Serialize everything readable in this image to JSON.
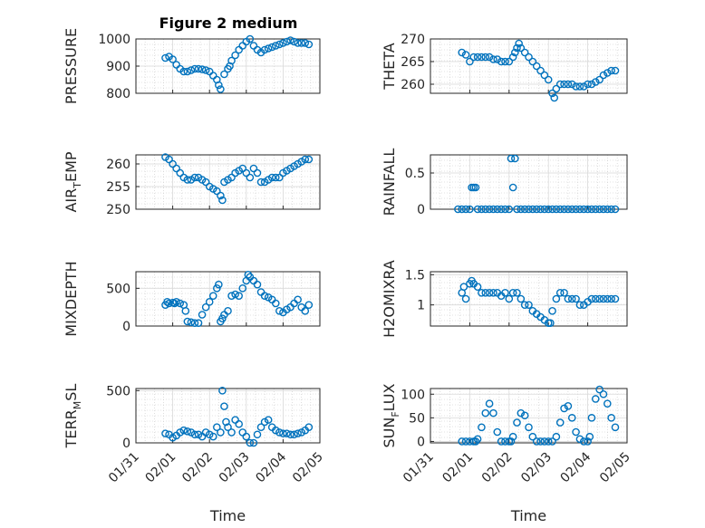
{
  "figure": {
    "title": "Figure 2 medium"
  },
  "colors": {
    "series": "#0072BD",
    "axis": "#262626"
  },
  "chart_data": [
    {
      "id": "pressure",
      "type": "scatter",
      "marker": "circle",
      "ylabel": "PRESSURE",
      "ylim": [
        800,
        1000
      ],
      "yticks": [
        800,
        900,
        1000
      ],
      "xlim": [
        0,
        5
      ],
      "grid": true,
      "series": [
        {
          "x": [
            0.8,
            0.9,
            1.0,
            1.1,
            1.2,
            1.3,
            1.4,
            1.5,
            1.6,
            1.7,
            1.8,
            1.9,
            2.0,
            2.1,
            2.2,
            2.25,
            2.3,
            2.4,
            2.5,
            2.55,
            2.6,
            2.7,
            2.8,
            2.9,
            3.0,
            3.1,
            3.2,
            3.3,
            3.4,
            3.5,
            3.6,
            3.7,
            3.8,
            3.9,
            4.0,
            4.1,
            4.2,
            4.3,
            4.4,
            4.5,
            4.6,
            4.7
          ],
          "y": [
            930,
            935,
            925,
            905,
            890,
            880,
            880,
            885,
            890,
            890,
            888,
            885,
            880,
            865,
            850,
            830,
            815,
            870,
            890,
            900,
            920,
            940,
            960,
            975,
            990,
            1000,
            975,
            960,
            950,
            960,
            965,
            970,
            975,
            980,
            985,
            990,
            995,
            990,
            985,
            985,
            985,
            980
          ]
        }
      ]
    },
    {
      "id": "theta",
      "type": "scatter",
      "marker": "circle",
      "ylabel": "THETA",
      "ylim": [
        258,
        270
      ],
      "yticks": [
        260,
        265,
        270
      ],
      "xlim": [
        0,
        5
      ],
      "grid": true,
      "series": [
        {
          "x": [
            0.8,
            0.9,
            1.0,
            1.1,
            1.2,
            1.3,
            1.4,
            1.5,
            1.6,
            1.7,
            1.8,
            1.9,
            2.0,
            2.1,
            2.15,
            2.2,
            2.25,
            2.3,
            2.4,
            2.5,
            2.6,
            2.7,
            2.8,
            2.9,
            3.0,
            3.1,
            3.15,
            3.2,
            3.3,
            3.4,
            3.5,
            3.6,
            3.7,
            3.8,
            3.9,
            4.0,
            4.1,
            4.2,
            4.3,
            4.4,
            4.5,
            4.6,
            4.7
          ],
          "y": [
            267,
            266.5,
            265,
            266,
            266,
            266,
            266,
            266,
            265.5,
            265.5,
            265,
            265,
            265,
            266,
            267,
            268,
            269,
            268,
            267,
            266,
            265,
            264,
            263,
            262,
            261,
            258,
            257,
            259,
            260,
            260,
            260,
            260,
            259.5,
            259.5,
            259.5,
            260,
            260,
            260.5,
            261,
            262,
            262.5,
            263,
            263
          ]
        }
      ]
    },
    {
      "id": "air_temp",
      "type": "scatter",
      "marker": "circle",
      "ylabel": "AIR",
      "ylabel_sub": "T",
      "ylabel_rest": "EMP",
      "ylim": [
        250,
        262
      ],
      "yticks": [
        250,
        255,
        260
      ],
      "xlim": [
        0,
        5
      ],
      "grid": true,
      "series": [
        {
          "x": [
            0.8,
            0.9,
            1.0,
            1.1,
            1.2,
            1.3,
            1.4,
            1.5,
            1.6,
            1.7,
            1.8,
            1.9,
            2.0,
            2.1,
            2.2,
            2.3,
            2.35,
            2.4,
            2.5,
            2.6,
            2.7,
            2.8,
            2.9,
            3.0,
            3.1,
            3.2,
            3.3,
            3.4,
            3.5,
            3.6,
            3.7,
            3.8,
            3.9,
            4.0,
            4.1,
            4.2,
            4.3,
            4.4,
            4.5,
            4.6,
            4.7
          ],
          "y": [
            261.5,
            261,
            260,
            259,
            258,
            257,
            256.5,
            256.5,
            257,
            257,
            256.5,
            256,
            255,
            254.5,
            254,
            253,
            252,
            256,
            256.5,
            257,
            258,
            258.5,
            259,
            258,
            257,
            259,
            258,
            256,
            256,
            256.5,
            257,
            257,
            257,
            258,
            258.5,
            259,
            259.5,
            260,
            260.5,
            261,
            261
          ]
        }
      ]
    },
    {
      "id": "rainfall",
      "type": "scatter",
      "marker": "circle",
      "ylabel": "RAINFALL",
      "ylim": [
        0,
        0.75
      ],
      "yticks": [
        0,
        0.5
      ],
      "xlim": [
        0,
        5
      ],
      "grid": true,
      "series": [
        {
          "x": [
            0.7,
            0.8,
            0.9,
            1.0,
            1.05,
            1.1,
            1.15,
            1.2,
            1.3,
            1.4,
            1.5,
            1.6,
            1.7,
            1.8,
            1.9,
            2.0,
            2.05,
            2.1,
            2.15,
            2.2,
            2.3,
            2.4,
            2.5,
            2.6,
            2.7,
            2.8,
            2.9,
            3.0,
            3.1,
            3.2,
            3.3,
            3.4,
            3.5,
            3.6,
            3.7,
            3.8,
            3.9,
            4.0,
            4.1,
            4.2,
            4.3,
            4.4,
            4.5,
            4.6,
            4.7
          ],
          "y": [
            0,
            0,
            0,
            0,
            0.3,
            0.3,
            0.3,
            0,
            0,
            0,
            0,
            0,
            0,
            0,
            0,
            0,
            0.7,
            0.3,
            0.7,
            0,
            0,
            0,
            0,
            0,
            0,
            0,
            0,
            0,
            0,
            0,
            0,
            0,
            0,
            0,
            0,
            0,
            0,
            0,
            0,
            0,
            0,
            0,
            0,
            0,
            0
          ]
        }
      ]
    },
    {
      "id": "mixdepth",
      "type": "scatter",
      "marker": "circle",
      "ylabel": "MIXDEPTH",
      "ylim": [
        0,
        720
      ],
      "yticks": [
        0,
        500
      ],
      "xlim": [
        0,
        5
      ],
      "grid": true,
      "series": [
        {
          "x": [
            0.8,
            0.85,
            0.9,
            1.0,
            1.05,
            1.1,
            1.2,
            1.3,
            1.35,
            1.4,
            1.5,
            1.6,
            1.7,
            1.8,
            1.9,
            2.0,
            2.1,
            2.2,
            2.25,
            2.3,
            2.35,
            2.4,
            2.5,
            2.6,
            2.7,
            2.8,
            2.9,
            3.0,
            3.05,
            3.1,
            3.2,
            3.3,
            3.4,
            3.5,
            3.6,
            3.7,
            3.8,
            3.9,
            4.0,
            4.1,
            4.2,
            4.3,
            4.4,
            4.5,
            4.6,
            4.7
          ],
          "y": [
            280,
            320,
            300,
            310,
            300,
            320,
            300,
            280,
            200,
            60,
            50,
            40,
            40,
            150,
            250,
            320,
            400,
            500,
            550,
            60,
            100,
            150,
            200,
            400,
            420,
            400,
            500,
            600,
            680,
            650,
            600,
            550,
            450,
            400,
            380,
            350,
            300,
            200,
            180,
            220,
            250,
            300,
            350,
            250,
            200,
            280
          ]
        }
      ]
    },
    {
      "id": "h2omixra",
      "type": "scatter",
      "marker": "circle",
      "ylabel": "H2OMIXRA",
      "ylim": [
        0.65,
        1.55
      ],
      "yticks": [
        1,
        1.5
      ],
      "xlim": [
        0,
        5
      ],
      "grid": true,
      "series": [
        {
          "x": [
            0.8,
            0.85,
            0.9,
            1.0,
            1.05,
            1.1,
            1.2,
            1.3,
            1.4,
            1.5,
            1.6,
            1.7,
            1.8,
            1.9,
            2.0,
            2.1,
            2.2,
            2.3,
            2.4,
            2.5,
            2.6,
            2.7,
            2.8,
            2.9,
            3.0,
            3.05,
            3.1,
            3.2,
            3.3,
            3.4,
            3.5,
            3.6,
            3.7,
            3.8,
            3.9,
            4.0,
            4.1,
            4.2,
            4.3,
            4.4,
            4.5,
            4.6,
            4.7
          ],
          "y": [
            1.2,
            1.3,
            1.1,
            1.35,
            1.4,
            1.35,
            1.3,
            1.2,
            1.2,
            1.2,
            1.2,
            1.2,
            1.15,
            1.2,
            1.1,
            1.2,
            1.2,
            1.1,
            1.0,
            1.0,
            0.9,
            0.85,
            0.8,
            0.75,
            0.7,
            0.7,
            0.9,
            1.1,
            1.2,
            1.2,
            1.1,
            1.1,
            1.1,
            1.0,
            1.0,
            1.05,
            1.1,
            1.1,
            1.1,
            1.1,
            1.1,
            1.1,
            1.1
          ]
        }
      ]
    },
    {
      "id": "terr_msl",
      "type": "scatter",
      "marker": "circle",
      "ylabel": "TERR",
      "ylabel_sub": "M",
      "ylabel_rest": "SL",
      "ylim": [
        0,
        520
      ],
      "yticks": [
        0,
        500
      ],
      "xlim": [
        0,
        5
      ],
      "grid": true,
      "series": [
        {
          "x": [
            0.8,
            0.9,
            1.0,
            1.1,
            1.2,
            1.3,
            1.4,
            1.5,
            1.6,
            1.7,
            1.8,
            1.9,
            2.0,
            2.1,
            2.2,
            2.3,
            2.35,
            2.4,
            2.45,
            2.5,
            2.6,
            2.7,
            2.8,
            2.9,
            3.0,
            3.1,
            3.2,
            3.3,
            3.4,
            3.5,
            3.6,
            3.7,
            3.8,
            3.9,
            4.0,
            4.1,
            4.2,
            4.3,
            4.4,
            4.5,
            4.6,
            4.7
          ],
          "y": [
            90,
            80,
            50,
            70,
            100,
            120,
            110,
            100,
            80,
            80,
            60,
            100,
            80,
            60,
            150,
            100,
            500,
            350,
            200,
            150,
            100,
            220,
            180,
            100,
            60,
            0,
            0,
            80,
            150,
            200,
            220,
            150,
            120,
            100,
            90,
            90,
            80,
            80,
            90,
            100,
            120,
            150
          ]
        }
      ]
    },
    {
      "id": "sun_flux",
      "type": "scatter",
      "marker": "circle",
      "ylabel": "SUN",
      "ylabel_sub": "F",
      "ylabel_rest": "LUX",
      "ylim": [
        -3,
        112
      ],
      "yticks": [
        0,
        50,
        100
      ],
      "xlim": [
        0,
        5
      ],
      "grid": true,
      "series": [
        {
          "x": [
            0.8,
            0.9,
            1.0,
            1.1,
            1.15,
            1.2,
            1.3,
            1.4,
            1.5,
            1.6,
            1.7,
            1.8,
            1.9,
            2.0,
            2.05,
            2.1,
            2.2,
            2.3,
            2.4,
            2.5,
            2.6,
            2.7,
            2.8,
            2.9,
            3.0,
            3.1,
            3.2,
            3.3,
            3.4,
            3.5,
            3.6,
            3.7,
            3.8,
            3.9,
            4.0,
            4.05,
            4.1,
            4.2,
            4.3,
            4.4,
            4.5,
            4.6,
            4.7
          ],
          "y": [
            0,
            0,
            0,
            0,
            0,
            5,
            30,
            60,
            80,
            60,
            20,
            0,
            0,
            0,
            0,
            10,
            40,
            60,
            55,
            30,
            10,
            0,
            0,
            0,
            0,
            0,
            10,
            40,
            70,
            75,
            50,
            20,
            5,
            0,
            0,
            10,
            50,
            90,
            110,
            100,
            80,
            50,
            30
          ]
        }
      ]
    }
  ],
  "x_axis": {
    "tick_labels": [
      "01/31",
      "02/01",
      "02/02",
      "02/03",
      "02/04",
      "02/05"
    ],
    "label": "Time"
  }
}
